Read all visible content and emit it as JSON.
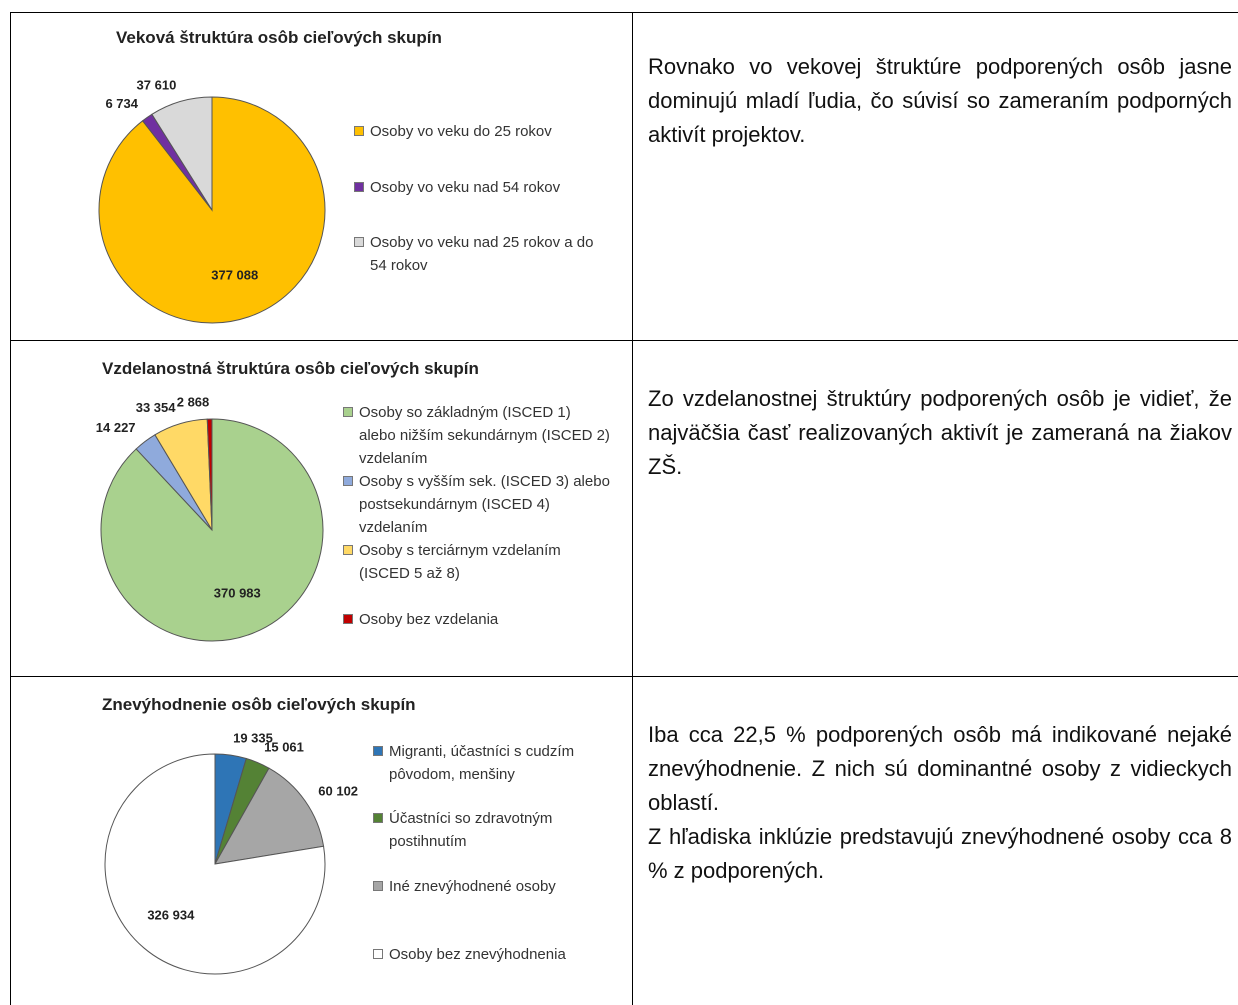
{
  "chart_data": [
    {
      "type": "pie",
      "title": "Veková štruktúra osôb cieľových skupín",
      "categories": [
        "Osoby vo veku do 25 rokov",
        "Osoby vo veku nad 54 rokov",
        "Osoby vo veku nad 25 rokov a do 54 rokov"
      ],
      "values": [
        377088,
        6734,
        37610
      ],
      "value_labels": [
        "377 088",
        "6 734",
        "37 610"
      ],
      "colors": [
        "#FFC000",
        "#7030A0",
        "#D9D9D9"
      ]
    },
    {
      "type": "pie",
      "title": "Vzdelanostná štruktúra osôb cieľových skupín",
      "categories": [
        "Osoby so základným (ISCED 1) alebo nižším sekundárnym (ISCED 2) vzdelaním",
        "Osoby s vyšším sek. (ISCED 3) alebo postsekundárnym (ISCED 4) vzdelaním",
        "Osoby s terciárnym vzdelaním (ISCED 5 až 8)",
        "Osoby bez vzdelania"
      ],
      "values": [
        370983,
        14227,
        33354,
        2868
      ],
      "value_labels": [
        "370 983",
        "14 227",
        "33 354",
        "2 868"
      ],
      "colors": [
        "#A9D18E",
        "#8FAADC",
        "#FFD966",
        "#C00000"
      ]
    },
    {
      "type": "pie",
      "title": "Znevýhodnenie osôb cieľových skupín",
      "categories": [
        "Migranti, účastníci s cudzím pôvodom, menšiny",
        "Účastníci so zdravotným postihnutím",
        "Iné znevýhodnené osoby",
        "Osoby bez znevýhodnenia"
      ],
      "values": [
        19335,
        15061,
        60102,
        326934
      ],
      "value_labels": [
        "19 335",
        "15 061",
        "60 102",
        "326 934"
      ],
      "colors": [
        "#2E75B6",
        "#548235",
        "#A6A6A6",
        "#FFFFFF"
      ]
    }
  ],
  "text_cells": [
    [
      "Rovnako vo vekovej štruktúre podporených osôb jasne dominujú mladí ľudia, čo súvisí so zameraním podporných aktivít projektov."
    ],
    [
      "Zo vzdelanostnej štruktúry podporených osôb je vidieť, že najväčšia časť realizovaných aktivít je zameraná na žiakov ZŠ."
    ],
    [
      "Iba cca 22,5 % podporených osôb má indikované nejaké znevýhodnenie. Z nich sú dominantné osoby z vidieckych oblastí.",
      "Z hľadiska inklúzie predstavujú znevýhodnené osoby cca 8 % z podporených."
    ]
  ]
}
